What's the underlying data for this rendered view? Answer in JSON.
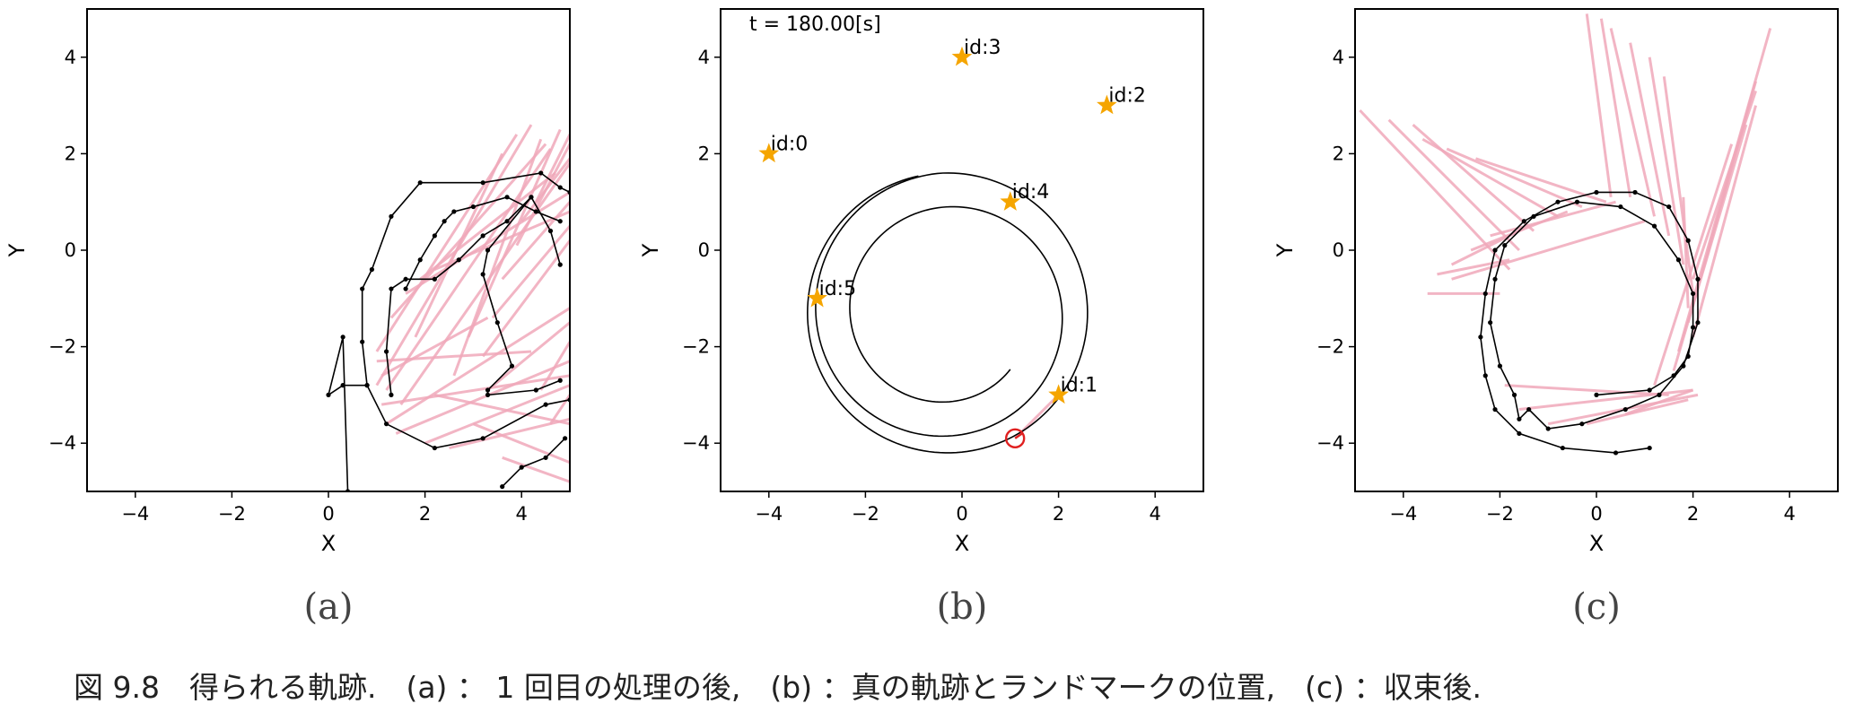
{
  "caption": "図 9.8　得られる軌跡.　(a) ： 1 回目の処理の後,　(b) ：真の軌跡とランドマークの位置,　(c) ：収束後.",
  "colors": {
    "trajectory": "#000000",
    "observation": "#f0a8ba",
    "landmark": "#f5a500",
    "robot": "#e02020",
    "frame": "#000000"
  },
  "chart_data": [
    {
      "type": "line",
      "panel_label": "(a)",
      "xlabel": "X",
      "ylabel": "Y",
      "xlim": [
        -5,
        5
      ],
      "ylim": [
        -5,
        5
      ],
      "xticks": [
        -4,
        -2,
        0,
        2,
        4
      ],
      "yticks": [
        -4,
        -2,
        0,
        2,
        4
      ],
      "xtick_labels": [
        "−4",
        "−2",
        "0",
        "2",
        "4"
      ],
      "ytick_labels": [
        "−4",
        "−2",
        "0",
        "2",
        "4"
      ],
      "series": [
        {
          "role": "trajectory",
          "markers": true,
          "x": [
            0.4,
            0.3,
            0.0,
            0.3,
            0.8,
            1.2,
            2.2,
            3.2,
            4.5,
            5.0
          ],
          "y": [
            -5.0,
            -1.8,
            -3.0,
            -2.8,
            -2.8,
            -3.6,
            -4.1,
            -3.9,
            -3.2,
            -3.1
          ]
        },
        {
          "role": "trajectory",
          "markers": true,
          "x": [
            0.8,
            0.7,
            0.7,
            0.9,
            1.3,
            1.9,
            3.2,
            4.4,
            4.8,
            5.0
          ],
          "y": [
            -2.8,
            -1.9,
            -0.8,
            -0.4,
            0.7,
            1.4,
            1.4,
            1.6,
            1.3,
            1.2
          ]
        },
        {
          "role": "trajectory",
          "markers": true,
          "x": [
            1.3,
            1.2,
            1.3,
            1.6,
            2.2,
            2.7,
            3.2,
            3.7,
            4.2,
            4.6,
            4.8
          ],
          "y": [
            -3.0,
            -2.1,
            -0.8,
            -0.6,
            -0.6,
            -0.2,
            0.3,
            0.6,
            1.1,
            0.4,
            -0.3
          ]
        },
        {
          "role": "trajectory",
          "markers": true,
          "x": [
            1.6,
            1.9,
            2.2,
            2.4,
            2.6,
            3.0,
            3.7,
            4.3,
            4.8
          ],
          "y": [
            -0.8,
            -0.2,
            0.3,
            0.6,
            0.8,
            0.9,
            1.1,
            0.8,
            0.6
          ]
        },
        {
          "role": "trajectory",
          "markers": true,
          "x": [
            4.2,
            3.3,
            3.2,
            3.5,
            3.8,
            3.3,
            3.3,
            4.3,
            4.8
          ],
          "y": [
            1.1,
            0.0,
            -0.5,
            -1.5,
            -2.4,
            -2.9,
            -3.0,
            -2.9,
            -2.7
          ]
        },
        {
          "role": "trajectory",
          "markers": true,
          "x": [
            3.6,
            4.0,
            4.5,
            4.9
          ],
          "y": [
            -4.9,
            -4.5,
            -4.3,
            -3.9
          ]
        }
      ],
      "observation_segments": [
        [
          [
            1.0,
            -2.8
          ],
          [
            4.2,
            2.6
          ]
        ],
        [
          [
            1.2,
            -2.9
          ],
          [
            4.6,
            2.1
          ]
        ],
        [
          [
            1.5,
            -3.2
          ],
          [
            5.0,
            1.8
          ]
        ],
        [
          [
            1.0,
            -2.1
          ],
          [
            3.9,
            2.4
          ]
        ],
        [
          [
            1.3,
            -1.4
          ],
          [
            4.5,
            2.2
          ]
        ],
        [
          [
            1.6,
            -0.9
          ],
          [
            5.0,
            1.2
          ]
        ],
        [
          [
            1.9,
            -0.6
          ],
          [
            4.7,
            1.6
          ]
        ],
        [
          [
            2.2,
            -0.4
          ],
          [
            5.0,
            0.8
          ]
        ],
        [
          [
            1.2,
            -3.6
          ],
          [
            5.0,
            -1.2
          ]
        ],
        [
          [
            1.4,
            -3.8
          ],
          [
            5.0,
            -2.3
          ]
        ],
        [
          [
            2.0,
            -4.0
          ],
          [
            5.0,
            -2.8
          ]
        ],
        [
          [
            2.5,
            -4.1
          ],
          [
            5.0,
            -3.5
          ]
        ],
        [
          [
            3.3,
            -2.9
          ],
          [
            5.0,
            -1.5
          ]
        ],
        [
          [
            3.2,
            -2.2
          ],
          [
            5.0,
            0.2
          ]
        ],
        [
          [
            3.4,
            -1.4
          ],
          [
            5.0,
            0.5
          ]
        ],
        [
          [
            3.6,
            -0.6
          ],
          [
            5.0,
            1.0
          ]
        ],
        [
          [
            3.9,
            0.1
          ],
          [
            5.0,
            2.2
          ]
        ],
        [
          [
            4.0,
            0.6
          ],
          [
            5.0,
            1.9
          ]
        ],
        [
          [
            4.3,
            1.0
          ],
          [
            5.0,
            2.4
          ]
        ],
        [
          [
            1.0,
            -2.3
          ],
          [
            4.2,
            -2.1
          ]
        ],
        [
          [
            1.1,
            -3.2
          ],
          [
            5.0,
            -2.6
          ]
        ],
        [
          [
            2.2,
            -3.0
          ],
          [
            5.0,
            -3.6
          ]
        ],
        [
          [
            3.0,
            -3.6
          ],
          [
            5.0,
            -4.4
          ]
        ],
        [
          [
            3.6,
            -4.3
          ],
          [
            5.0,
            -4.8
          ]
        ],
        [
          [
            2.9,
            -1.8
          ],
          [
            4.8,
            2.5
          ]
        ],
        [
          [
            2.6,
            -2.6
          ],
          [
            4.4,
            2.3
          ]
        ],
        [
          [
            1.8,
            -1.8
          ],
          [
            3.6,
            2.0
          ]
        ],
        [
          [
            1.1,
            -2.6
          ],
          [
            3.3,
            -1.4
          ]
        ],
        [
          [
            4.4,
            -2.9
          ],
          [
            5.0,
            -1.9
          ]
        ],
        [
          [
            4.6,
            -3.6
          ],
          [
            5.0,
            -3.0
          ]
        ]
      ]
    },
    {
      "type": "line",
      "panel_label": "(b)",
      "xlabel": "X",
      "ylabel": "Y",
      "xlim": [
        -5,
        5
      ],
      "ylim": [
        -5,
        5
      ],
      "xticks": [
        -4,
        -2,
        0,
        2,
        4
      ],
      "yticks": [
        -4,
        -2,
        0,
        2,
        4
      ],
      "xtick_labels": [
        "−4",
        "−2",
        "0",
        "2",
        "4"
      ],
      "ytick_labels": [
        "−4",
        "−2",
        "0",
        "2",
        "4"
      ],
      "time_label": "t = 180.00[s]",
      "landmarks": [
        {
          "id": "id:0",
          "x": -4,
          "y": 2
        },
        {
          "id": "id:1",
          "x": 2,
          "y": -3
        },
        {
          "id": "id:2",
          "x": 3,
          "y": 3
        },
        {
          "id": "id:3",
          "x": 0,
          "y": 4
        },
        {
          "id": "id:4",
          "x": 1,
          "y": 1
        },
        {
          "id": "id:5",
          "x": -3,
          "y": -1
        }
      ],
      "true_trajectory": {
        "center": [
          -0.3,
          -1.3
        ],
        "start_radius": 1.75,
        "end_radius": 2.9,
        "start_angle_deg": -42,
        "turns": 2.6
      },
      "robot_position": {
        "x": 1.1,
        "y": -3.9
      },
      "observation_segment": [
        [
          1.1,
          -3.9
        ],
        [
          1.95,
          -3.05
        ]
      ]
    },
    {
      "type": "line",
      "panel_label": "(c)",
      "xlabel": "X",
      "ylabel": "Y",
      "xlim": [
        -5,
        5
      ],
      "ylim": [
        -5,
        5
      ],
      "xticks": [
        -4,
        -2,
        0,
        2,
        4
      ],
      "yticks": [
        -4,
        -2,
        0,
        2,
        4
      ],
      "xtick_labels": [
        "−4",
        "−2",
        "0",
        "2",
        "4"
      ],
      "ytick_labels": [
        "−4",
        "−2",
        "0",
        "2",
        "4"
      ],
      "series": [
        {
          "role": "trajectory",
          "markers": true,
          "x": [
            0.0,
            1.1,
            1.6,
            1.9,
            2.0,
            2.0,
            1.7,
            1.2,
            0.5,
            -0.4,
            -1.3,
            -1.9,
            -2.1,
            -2.2,
            -2.0,
            -1.7,
            -1.6,
            -1.4,
            -1.0,
            -0.3,
            0.6,
            1.3,
            1.8,
            2.1,
            2.1,
            1.9,
            1.5,
            0.8,
            0.0,
            -0.8,
            -1.5,
            -2.1,
            -2.3,
            -2.4,
            -2.3,
            -2.1,
            -1.6,
            -0.7,
            0.4,
            1.1
          ],
          "y": [
            -3.0,
            -2.9,
            -2.6,
            -2.2,
            -1.6,
            -0.9,
            -0.2,
            0.5,
            0.9,
            1.0,
            0.7,
            0.1,
            -0.6,
            -1.5,
            -2.4,
            -3.0,
            -3.5,
            -3.3,
            -3.7,
            -3.6,
            -3.3,
            -3.0,
            -2.4,
            -1.5,
            -0.6,
            0.2,
            0.9,
            1.2,
            1.2,
            1.0,
            0.6,
            0.0,
            -0.9,
            -1.8,
            -2.6,
            -3.3,
            -3.8,
            -4.1,
            -4.2,
            -4.1
          ]
        }
      ],
      "observation_segments": [
        [
          [
            -1.8,
            -0.4
          ],
          [
            -4.9,
            2.9
          ]
        ],
        [
          [
            -1.6,
            0.0
          ],
          [
            -4.3,
            2.7
          ]
        ],
        [
          [
            -1.3,
            0.4
          ],
          [
            -3.8,
            2.6
          ]
        ],
        [
          [
            -0.8,
            0.7
          ],
          [
            -3.6,
            2.3
          ]
        ],
        [
          [
            -0.3,
            0.9
          ],
          [
            -3.1,
            2.1
          ]
        ],
        [
          [
            0.2,
            1.0
          ],
          [
            -2.5,
            1.9
          ]
        ],
        [
          [
            -2.0,
            -0.9
          ],
          [
            -3.5,
            -0.9
          ]
        ],
        [
          [
            -1.8,
            -0.2
          ],
          [
            -3.3,
            -0.5
          ]
        ],
        [
          [
            -1.4,
            0.5
          ],
          [
            -3.0,
            -0.3
          ]
        ],
        [
          [
            -0.6,
            0.8
          ],
          [
            -2.6,
            0.0
          ]
        ],
        [
          [
            0.4,
            1.0
          ],
          [
            -2.2,
            0.3
          ]
        ],
        [
          [
            1.0,
            0.6
          ],
          [
            -3.0,
            -0.6
          ]
        ],
        [
          [
            0.3,
            1.1
          ],
          [
            -0.2,
            4.9
          ]
        ],
        [
          [
            0.7,
            1.1
          ],
          [
            0.1,
            4.8
          ]
        ],
        [
          [
            1.2,
            0.7
          ],
          [
            0.3,
            4.6
          ]
        ],
        [
          [
            1.5,
            0.3
          ],
          [
            0.7,
            4.3
          ]
        ],
        [
          [
            1.8,
            -0.3
          ],
          [
            1.1,
            4.0
          ]
        ],
        [
          [
            2.0,
            -0.9
          ],
          [
            1.4,
            3.6
          ]
        ],
        [
          [
            1.9,
            -1.5
          ],
          [
            3.3,
            3.5
          ]
        ],
        [
          [
            2.0,
            -0.6
          ],
          [
            3.3,
            3.3
          ]
        ],
        [
          [
            1.7,
            -2.1
          ],
          [
            3.6,
            4.6
          ]
        ],
        [
          [
            2.0,
            -1.8
          ],
          [
            3.3,
            3.0
          ]
        ],
        [
          [
            1.6,
            -2.5
          ],
          [
            3.1,
            2.6
          ]
        ],
        [
          [
            1.2,
            -2.8
          ],
          [
            2.8,
            2.2
          ]
        ],
        [
          [
            -1.6,
            -3.3
          ],
          [
            2.0,
            -2.9
          ]
        ],
        [
          [
            -1.0,
            -3.6
          ],
          [
            2.1,
            -3.0
          ]
        ],
        [
          [
            -0.2,
            -3.6
          ],
          [
            1.9,
            -3.1
          ]
        ],
        [
          [
            0.6,
            -3.4
          ],
          [
            2.0,
            -2.9
          ]
        ],
        [
          [
            -1.9,
            -2.8
          ],
          [
            1.5,
            -3.0
          ]
        ],
        [
          [
            1.9,
            -1.2
          ],
          [
            1.8,
            1.1
          ]
        ]
      ]
    }
  ]
}
